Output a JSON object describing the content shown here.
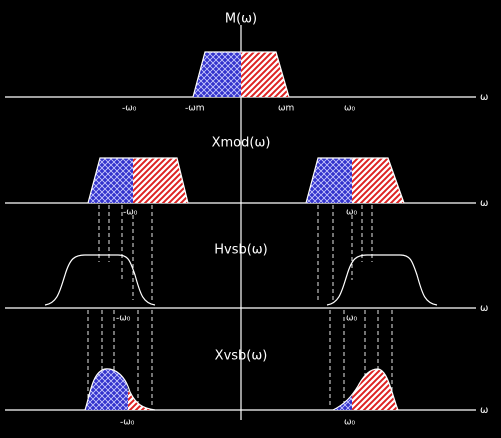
{
  "panels": [
    {
      "title": "M(ω)",
      "axis_label": "ω",
      "tick_labels": [
        "-ω₀",
        "-ωm",
        "ωm",
        "ω₀"
      ]
    },
    {
      "title": "Xmod(ω)",
      "axis_label": "ω",
      "tick_labels": [
        "-ω₀",
        "ω₀"
      ]
    },
    {
      "title": "Hvsb(ω)",
      "axis_label": "ω",
      "tick_labels": [
        "-ω₀",
        "ω₀"
      ]
    },
    {
      "title": "Xvsb(ω)",
      "axis_label": "ω",
      "tick_labels": [
        "-ω₀",
        "ω₀"
      ]
    }
  ]
}
